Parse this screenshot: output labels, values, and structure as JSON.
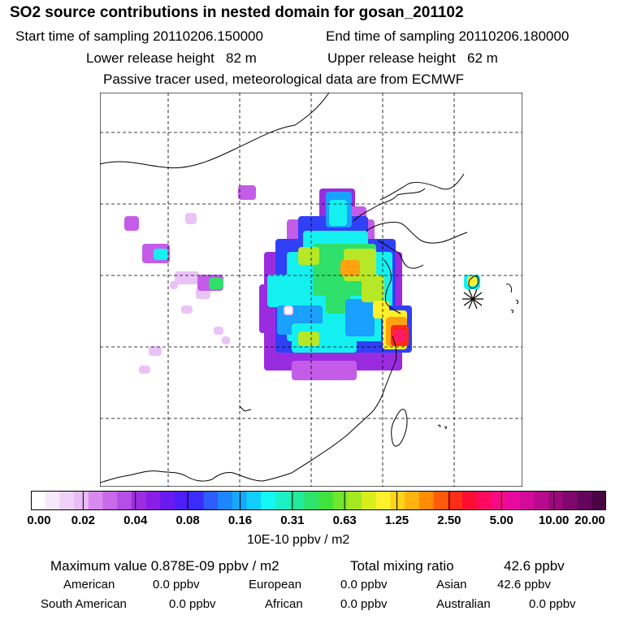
{
  "header": {
    "title": "SO2 source contributions in nested domain for gosan_201102",
    "start_label": "Start time of sampling 20110206.150000",
    "end_label": "End time of sampling 20110206.180000",
    "lower_label": "Lower release height   82 m",
    "upper_label": "Upper release height   62 m",
    "tracer_note": "Passive tracer used, meteorological data are from ECMWF"
  },
  "map": {
    "receptor_marker": "asterisk",
    "contour_note": "none"
  },
  "colorbar": {
    "ticks": [
      "0.00",
      "0.02",
      "0.04",
      "0.08",
      "0.16",
      "0.31",
      "0.63",
      "1.25",
      "2.50",
      "5.00",
      "10.00",
      "20.00"
    ],
    "units": "10E-10 ppbv / m2",
    "colors": [
      "#ffffff",
      "#f7e8fb",
      "#f0d2f8",
      "#e8bcf4",
      "#d98af0",
      "#c86ae9",
      "#b54ee5",
      "#9d2ee0",
      "#8a1ee6",
      "#6a19ee",
      "#4d1ff6",
      "#3a2cfb",
      "#2d5cff",
      "#1d86ff",
      "#15a8ff",
      "#10cfff",
      "#14f7f7",
      "#1af1c8",
      "#22ea9a",
      "#2ce36c",
      "#3fe33e",
      "#72e52c",
      "#a4e822",
      "#d8ee1a",
      "#fff12b",
      "#ffd21b",
      "#ffb30e",
      "#ff8c05",
      "#ff5b0a",
      "#ff2d18",
      "#ff0d33",
      "#ff0a5e",
      "#f70a86",
      "#e80aa0",
      "#d40a9a",
      "#b80a8c",
      "#9a0a7c",
      "#7e086c",
      "#64065e",
      "#4a0444"
    ]
  },
  "stats": {
    "max_label": "Maximum value  0.878E-09 ppbv / m2",
    "total_label": "Total mixing ratio",
    "total_value": "42.6 ppbv"
  },
  "regions": [
    {
      "name": "American",
      "value": "0.0 ppbv"
    },
    {
      "name": "European",
      "value": "0.0 ppbv"
    },
    {
      "name": "Asian",
      "value": "42.6 ppbv"
    },
    {
      "name": "South American",
      "value": "0.0 ppbv"
    },
    {
      "name": "African",
      "value": "0.0 ppbv"
    },
    {
      "name": "Australian",
      "value": "0.0 ppbv"
    }
  ]
}
